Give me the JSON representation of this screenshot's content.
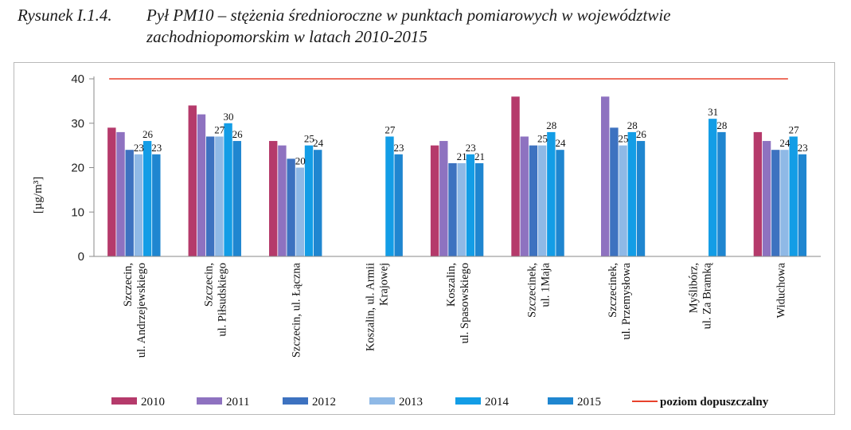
{
  "caption": {
    "label": "Rysunek I.1.4.",
    "line1": "Pył PM10 – stężenia średnioroczne w punktach pomiarowych w województwie",
    "line2": "zachodniopomorskim w latach 2010-2015"
  },
  "chart_data": {
    "type": "bar",
    "ylabel": "[µg/m³]",
    "ylim": [
      0,
      40
    ],
    "yticks": [
      0,
      10,
      20,
      30,
      40
    ],
    "grid": false,
    "legend_position": "bottom",
    "categories": [
      [
        "Szczecin,",
        "ul. Andrzejewskiego"
      ],
      [
        "Szczecin,",
        "ul. Piłsudskiego"
      ],
      [
        "Szczecin, ul. Łączna"
      ],
      [
        "Koszalin, ul. Armii",
        "Krajowej"
      ],
      [
        "Koszalin,",
        "ul. Spasowskiego"
      ],
      [
        "Szczecinek,",
        "ul. 1Maja"
      ],
      [
        "Szczecinek,",
        "ul. Przemysłowa"
      ],
      [
        "Myślibórz,",
        "ul. Za Bramką"
      ],
      [
        "Widuchowa"
      ]
    ],
    "series": [
      {
        "name": "2010",
        "color": "#b53a6b",
        "values": [
          29,
          34,
          26,
          null,
          25,
          36,
          null,
          null,
          28
        ]
      },
      {
        "name": "2011",
        "color": "#8e72c0",
        "values": [
          28,
          32,
          25,
          null,
          26,
          27,
          36,
          null,
          26
        ]
      },
      {
        "name": "2012",
        "color": "#3d72c0",
        "values": [
          24,
          27,
          22,
          null,
          21,
          25,
          29,
          null,
          24
        ]
      },
      {
        "name": "2013",
        "color": "#8fb9e6",
        "values": [
          23,
          27,
          20,
          null,
          21,
          25,
          25,
          null,
          24
        ]
      },
      {
        "name": "2014",
        "color": "#139de6",
        "values": [
          26,
          30,
          25,
          27,
          23,
          28,
          28,
          31,
          27
        ]
      },
      {
        "name": "2015",
        "color": "#1f86d0",
        "values": [
          23,
          26,
          24,
          23,
          21,
          24,
          26,
          28,
          23
        ]
      }
    ],
    "data_labels": [
      {
        "category": 0,
        "series": 3,
        "text": "23"
      },
      {
        "category": 0,
        "series": 4,
        "text": "26"
      },
      {
        "category": 0,
        "series": 5,
        "text": "23"
      },
      {
        "category": 1,
        "series": 3,
        "text": "27"
      },
      {
        "category": 1,
        "series": 4,
        "text": "30"
      },
      {
        "category": 1,
        "series": 5,
        "text": "26"
      },
      {
        "category": 2,
        "series": 3,
        "text": "20"
      },
      {
        "category": 2,
        "series": 4,
        "text": "25"
      },
      {
        "category": 2,
        "series": 5,
        "text": "24"
      },
      {
        "category": 3,
        "series": 4,
        "text": "27"
      },
      {
        "category": 3,
        "series": 5,
        "text": "23"
      },
      {
        "category": 4,
        "series": 3,
        "text": "21"
      },
      {
        "category": 4,
        "series": 4,
        "text": "23"
      },
      {
        "category": 4,
        "series": 5,
        "text": "21"
      },
      {
        "category": 5,
        "series": 3,
        "text": "25"
      },
      {
        "category": 5,
        "series": 4,
        "text": "28"
      },
      {
        "category": 5,
        "series": 5,
        "text": "24"
      },
      {
        "category": 6,
        "series": 3,
        "text": "25"
      },
      {
        "category": 6,
        "series": 4,
        "text": "28"
      },
      {
        "category": 6,
        "series": 5,
        "text": "26"
      },
      {
        "category": 7,
        "series": 4,
        "text": "31"
      },
      {
        "category": 7,
        "series": 5,
        "text": "28"
      },
      {
        "category": 8,
        "series": 3,
        "text": "24"
      },
      {
        "category": 8,
        "series": 4,
        "text": "27"
      },
      {
        "category": 8,
        "series": 5,
        "text": "23"
      }
    ],
    "reference_line": {
      "name": "poziom dopuszczalny",
      "value": 40,
      "color": "#e8412c"
    }
  }
}
